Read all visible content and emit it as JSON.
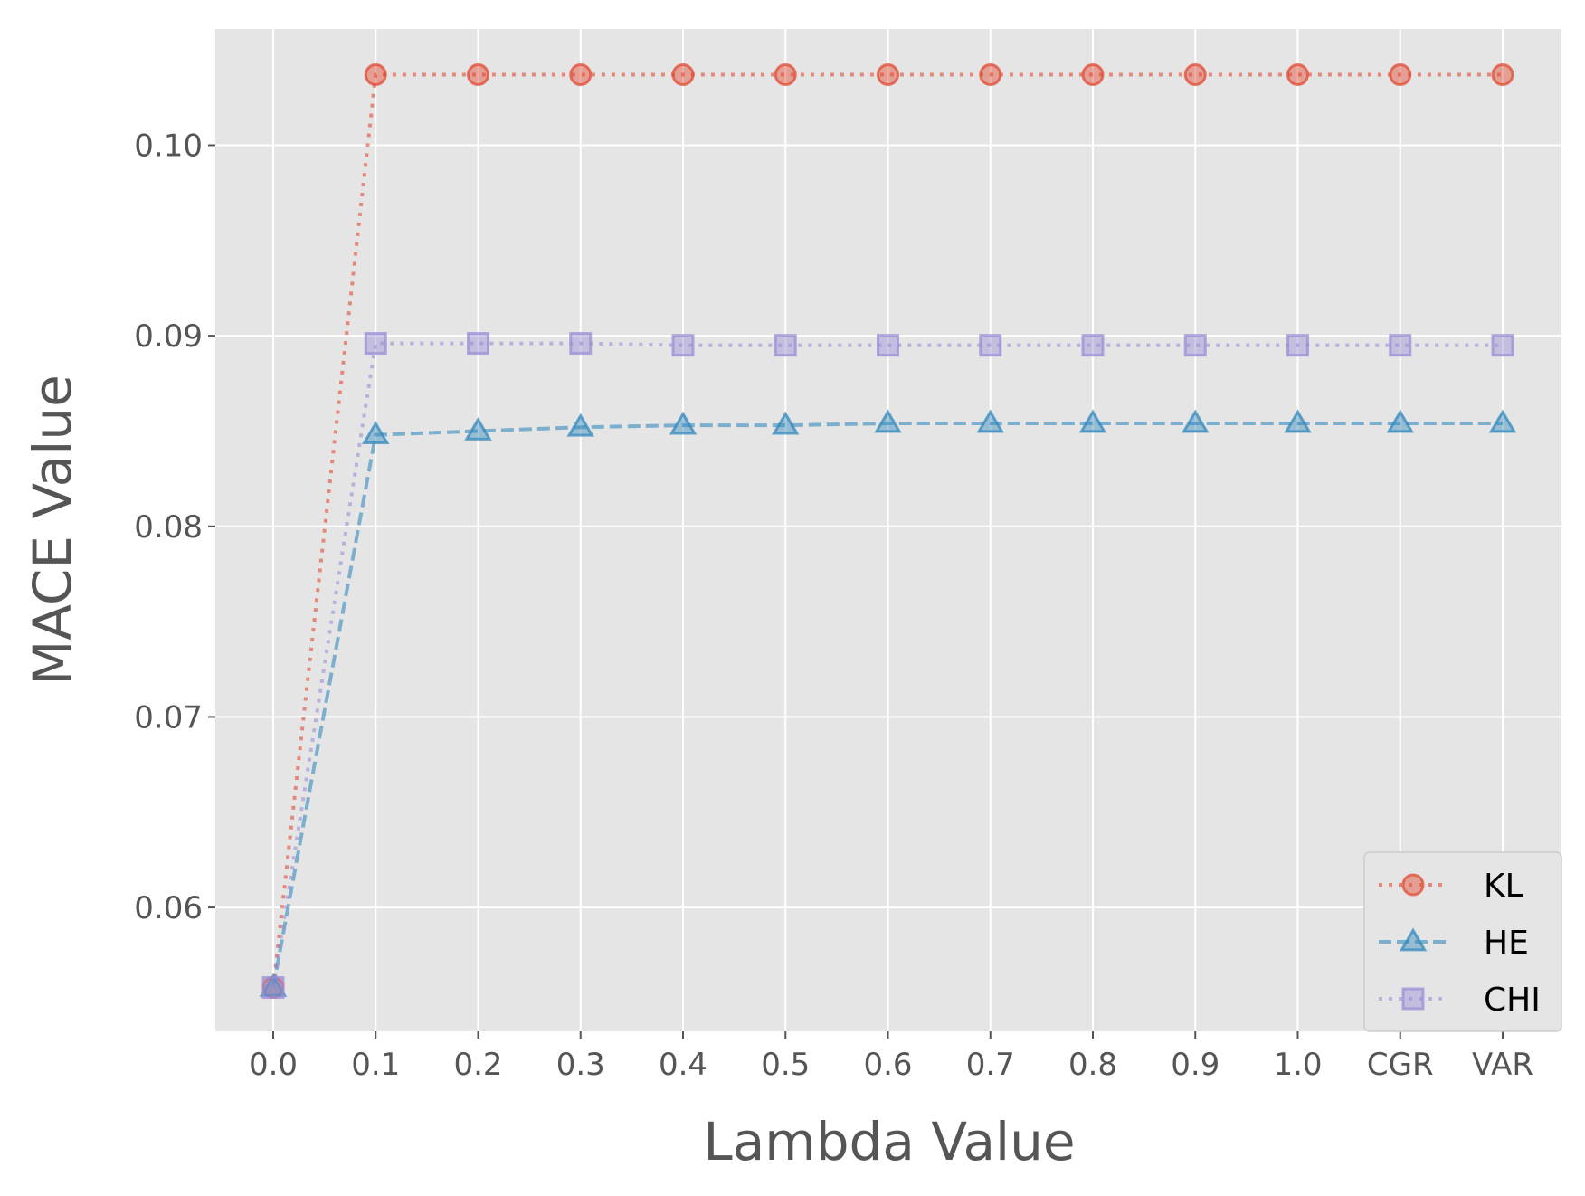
{
  "chart_data": {
    "type": "line",
    "title": "",
    "xlabel": "Lambda Value",
    "ylabel": "MACE Value",
    "categories": [
      "0.0",
      "0.1",
      "0.2",
      "0.3",
      "0.4",
      "0.5",
      "0.6",
      "0.7",
      "0.8",
      "0.9",
      "1.0",
      "CGR",
      "VAR"
    ],
    "ylim": [
      0.0535,
      0.1061
    ],
    "yticks": [
      "0.06",
      "0.07",
      "0.08",
      "0.09",
      "0.10"
    ],
    "grid": true,
    "legend_position": "lower-right",
    "series": [
      {
        "name": "KL",
        "color": "#E24A33",
        "linestyle": "dotted",
        "marker": "circle",
        "values": [
          0.0558,
          0.1037,
          0.1037,
          0.1037,
          0.1037,
          0.1037,
          0.1037,
          0.1037,
          0.1037,
          0.1037,
          0.1037,
          0.1037,
          0.1037
        ]
      },
      {
        "name": "HE",
        "color": "#348ABD",
        "linestyle": "dashed",
        "marker": "triangle",
        "values": [
          0.0558,
          0.0848,
          0.085,
          0.0852,
          0.0853,
          0.0853,
          0.0854,
          0.0854,
          0.0854,
          0.0854,
          0.0854,
          0.0854,
          0.0854
        ]
      },
      {
        "name": "CHI",
        "color": "#988ED5",
        "linestyle": "dotted",
        "marker": "square",
        "values": [
          0.0558,
          0.0896,
          0.0896,
          0.0896,
          0.0895,
          0.0895,
          0.0895,
          0.0895,
          0.0895,
          0.0895,
          0.0895,
          0.0895,
          0.0895
        ]
      }
    ]
  }
}
